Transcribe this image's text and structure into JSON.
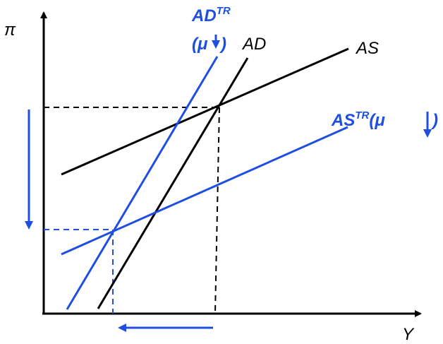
{
  "colors": {
    "black": "#000000",
    "blue": "#1f4fe0"
  },
  "axes": {
    "y_label": "π",
    "x_label": "Y"
  },
  "curves": {
    "ad": {
      "name": "AD"
    },
    "as": {
      "name": "AS"
    },
    "ad_tr": {
      "name": "AD",
      "superscript": "TR",
      "note_open": "(μ",
      "note_close": ")"
    },
    "as_tr": {
      "name": "AS",
      "superscript": "TR",
      "note_open": "(μ",
      "note_close": ")"
    }
  }
}
